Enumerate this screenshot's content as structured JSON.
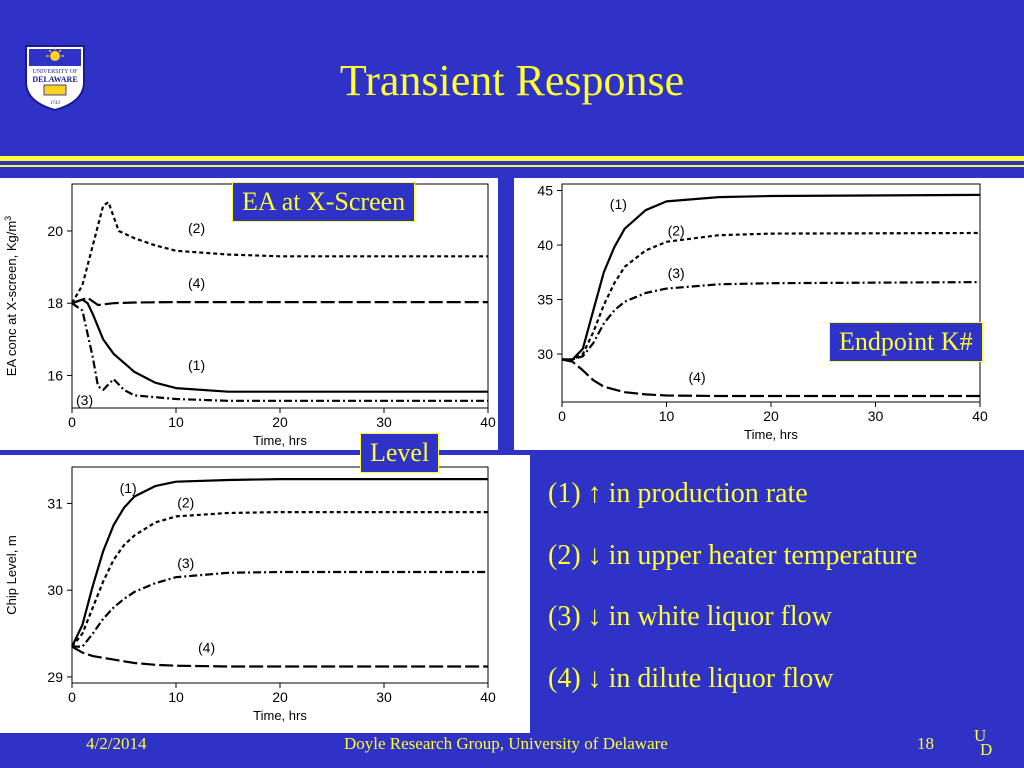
{
  "title": "Transient Response",
  "boxes": {
    "ea": "EA at X-Screen",
    "endpoint": "Endpoint K#",
    "level": "Level"
  },
  "legend": [
    {
      "num": "(1)",
      "arrow": "↑",
      "text": "in production rate"
    },
    {
      "num": "(2)",
      "arrow": "↓",
      "text": "in upper heater temperature"
    },
    {
      "num": "(3)",
      "arrow": "↓",
      "text": "in white liquor flow"
    },
    {
      "num": "(4)",
      "arrow": "↓",
      "text": "in dilute liquor flow"
    }
  ],
  "footer": {
    "date": "4/2/2014",
    "org": "Doyle Research Group, University of Delaware",
    "page": "18",
    "ud_top": "U",
    "ud_bottom": "D"
  },
  "logo": {
    "line1": "UNIVERSITY OF",
    "line2": "DELAWARE",
    "year": "1743"
  },
  "colors": {
    "background": "#2e32c6",
    "accent": "#ffff33"
  },
  "chart_data": [
    {
      "id": "ea",
      "type": "line",
      "xlabel": "Time, hrs",
      "ylabel": "EA conc at X-screen, Kg/m",
      "ylabel_sup": "3",
      "xlim": [
        0,
        40
      ],
      "ylim": [
        15.1,
        21.3
      ],
      "xticks": [
        0,
        10,
        20,
        30,
        40
      ],
      "yticks": [
        16,
        18,
        20
      ],
      "series": [
        {
          "name": "(1)",
          "style": "solid",
          "x": [
            0,
            1,
            1.5,
            2,
            3,
            4,
            6,
            8,
            10,
            15,
            20,
            30,
            40
          ],
          "y": [
            18,
            18.1,
            18,
            17.7,
            17,
            16.6,
            16.1,
            15.8,
            15.65,
            15.55,
            15.55,
            15.55,
            15.55
          ]
        },
        {
          "name": "(2)",
          "style": "dotted",
          "x": [
            0,
            1,
            2,
            3,
            3.5,
            4.5,
            6,
            8,
            10,
            15,
            20,
            30,
            40
          ],
          "y": [
            18,
            18.5,
            19.6,
            20.7,
            20.8,
            20.0,
            19.8,
            19.6,
            19.45,
            19.35,
            19.3,
            19.3,
            19.3
          ]
        },
        {
          "name": "(3)",
          "style": "dashdot",
          "x": [
            0,
            1,
            2,
            2.5,
            3,
            4,
            5,
            6,
            8,
            10,
            15,
            20,
            30,
            40
          ],
          "y": [
            18,
            17.8,
            16.5,
            15.7,
            15.6,
            15.9,
            15.6,
            15.45,
            15.4,
            15.35,
            15.3,
            15.3,
            15.3,
            15.3
          ]
        },
        {
          "name": "(4)",
          "style": "longdash",
          "x": [
            0,
            1,
            1.5,
            2.5,
            4,
            6,
            10,
            20,
            40
          ],
          "y": [
            18,
            18.1,
            18.15,
            17.95,
            18.0,
            18.02,
            18.03,
            18.03,
            18.03
          ]
        }
      ]
    },
    {
      "id": "endpoint",
      "type": "line",
      "xlabel": "Time, hrs",
      "ylabel": "",
      "xlim": [
        0,
        40
      ],
      "ylim": [
        25.6,
        45.6
      ],
      "xticks": [
        0,
        10,
        20,
        30,
        40
      ],
      "yticks": [
        30,
        35,
        40,
        45
      ],
      "series": [
        {
          "name": "(1)",
          "style": "solid",
          "x": [
            0,
            1,
            2,
            3,
            4,
            5,
            6,
            8,
            10,
            15,
            20,
            40
          ],
          "y": [
            29.5,
            29.5,
            30.5,
            34,
            37.5,
            39.8,
            41.5,
            43.2,
            44,
            44.4,
            44.5,
            44.6
          ]
        },
        {
          "name": "(2)",
          "style": "dotted",
          "x": [
            0,
            1,
            2,
            3,
            4,
            5,
            6,
            8,
            10,
            15,
            20,
            40
          ],
          "y": [
            29.5,
            29.5,
            30,
            32,
            34.5,
            36.5,
            38,
            39.5,
            40.3,
            40.9,
            41.05,
            41.1
          ]
        },
        {
          "name": "(3)",
          "style": "dashdot",
          "x": [
            0,
            1,
            2,
            3,
            4,
            5,
            6,
            8,
            10,
            15,
            20,
            40
          ],
          "y": [
            29.5,
            29.5,
            29.8,
            31,
            32.8,
            34,
            34.8,
            35.6,
            36,
            36.4,
            36.5,
            36.6
          ]
        },
        {
          "name": "(4)",
          "style": "longdash",
          "x": [
            0,
            1,
            2,
            3,
            4,
            6,
            8,
            10,
            15,
            20,
            40
          ],
          "y": [
            29.5,
            29.3,
            28.5,
            27.6,
            27,
            26.5,
            26.3,
            26.2,
            26.15,
            26.15,
            26.15
          ]
        }
      ]
    },
    {
      "id": "level",
      "type": "line",
      "xlabel": "Time, hrs",
      "ylabel": "Chip Level, m",
      "xlim": [
        0,
        40
      ],
      "ylim": [
        28.93,
        31.42
      ],
      "xticks": [
        0,
        10,
        20,
        30,
        40
      ],
      "yticks": [
        29,
        30,
        31
      ],
      "series": [
        {
          "name": "(1)",
          "style": "solid",
          "x": [
            0,
            1,
            2,
            3,
            4,
            5,
            6,
            8,
            10,
            15,
            20,
            40
          ],
          "y": [
            29.35,
            29.6,
            30.05,
            30.45,
            30.75,
            30.95,
            31.08,
            31.2,
            31.25,
            31.27,
            31.28,
            31.28
          ]
        },
        {
          "name": "(2)",
          "style": "dotted",
          "x": [
            0,
            1,
            2,
            3,
            4,
            5,
            6,
            8,
            10,
            15,
            20,
            40
          ],
          "y": [
            29.35,
            29.5,
            29.8,
            30.1,
            30.35,
            30.52,
            30.63,
            30.78,
            30.85,
            30.89,
            30.9,
            30.9
          ]
        },
        {
          "name": "(3)",
          "style": "dashdot",
          "x": [
            0,
            1,
            2,
            3,
            4,
            5,
            6,
            8,
            10,
            15,
            20,
            40
          ],
          "y": [
            29.35,
            29.35,
            29.5,
            29.67,
            29.8,
            29.9,
            29.98,
            30.08,
            30.15,
            30.2,
            30.21,
            30.21
          ]
        },
        {
          "name": "(4)",
          "style": "longdash",
          "x": [
            0,
            1,
            2,
            4,
            6,
            8,
            10,
            15,
            20,
            40
          ],
          "y": [
            29.35,
            29.28,
            29.24,
            29.2,
            29.16,
            29.14,
            29.13,
            29.12,
            29.12,
            29.12
          ]
        }
      ]
    }
  ]
}
